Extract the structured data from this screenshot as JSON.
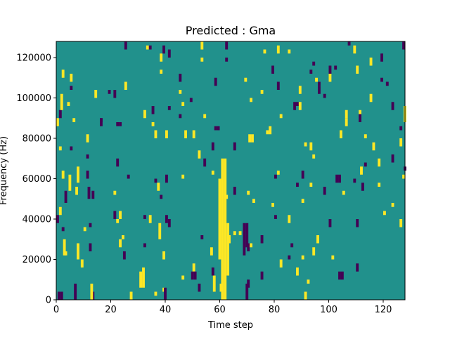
{
  "chart_data": {
    "type": "heatmap",
    "title": "Predicted : Gma",
    "xlabel": "Time step",
    "ylabel": "Frequency (Hz)",
    "xlim": [
      0,
      128
    ],
    "ylim": [
      0,
      128000
    ],
    "x_ticks": [
      0,
      20,
      40,
      60,
      80,
      100,
      120
    ],
    "y_ticks": [
      0,
      20000,
      40000,
      60000,
      80000,
      100000,
      120000
    ],
    "grid": false,
    "legend": "none",
    "colormap": {
      "low": "#440154",
      "mid": "#21918c",
      "high": "#fde725"
    },
    "background_value": "mid",
    "time_bins": 128,
    "freq_bins": 64,
    "high_cells": [
      {
        "t": 61,
        "f0": 0,
        "f1": 70000
      },
      {
        "t": 62,
        "f0": 0,
        "f1": 70000
      },
      {
        "t": 60,
        "f0": 20000,
        "f1": 60000
      },
      {
        "t": 63,
        "f0": 12000,
        "f1": 38000
      },
      {
        "t": 58,
        "f0": 4000,
        "f1": 12000
      },
      {
        "t": 57,
        "f0": 22000,
        "f1": 26000
      },
      {
        "t": 5,
        "f0": 54000,
        "f1": 62000
      },
      {
        "t": 8,
        "f0": 58000,
        "f1": 66000
      },
      {
        "t": 3,
        "f0": 22000,
        "f1": 30000
      },
      {
        "t": 13,
        "f0": 0,
        "f1": 8000
      },
      {
        "t": 31,
        "f0": 6000,
        "f1": 14000
      },
      {
        "t": 32,
        "f0": 6000,
        "f1": 16000
      },
      {
        "t": 38,
        "f0": 30000,
        "f1": 38000
      },
      {
        "t": 71,
        "f0": 78000,
        "f1": 82000
      },
      {
        "t": 72,
        "f0": 78000,
        "f1": 82000
      },
      {
        "t": 2,
        "f0": 94000,
        "f1": 102000
      },
      {
        "t": 8,
        "f0": 20000,
        "f1": 28000
      },
      {
        "t": 96,
        "f0": 28000,
        "f1": 32000
      },
      {
        "t": 112,
        "f0": 62000,
        "f1": 66000
      },
      {
        "t": 128,
        "f0": 88000,
        "f1": 96000
      }
    ],
    "low_cells": [
      {
        "t": 69,
        "f0": 22000,
        "f1": 38000
      },
      {
        "t": 70,
        "f0": 26000,
        "f1": 38000
      },
      {
        "t": 1,
        "f0": 0,
        "f1": 4000
      },
      {
        "t": 2,
        "f0": 0,
        "f1": 4000
      },
      {
        "t": 7,
        "f0": 0,
        "f1": 8000
      },
      {
        "t": 12,
        "f0": 50000,
        "f1": 56000
      },
      {
        "t": 25,
        "f0": 20000,
        "f1": 24000
      },
      {
        "t": 50,
        "f0": 10000,
        "f1": 14000
      },
      {
        "t": 51,
        "f0": 10000,
        "f1": 14000
      },
      {
        "t": 104,
        "f0": 10000,
        "f1": 14000
      },
      {
        "t": 105,
        "f0": 10000,
        "f1": 14000
      },
      {
        "t": 70,
        "f0": 0,
        "f1": 8000
      },
      {
        "t": 103,
        "f0": 58000,
        "f1": 62000
      },
      {
        "t": 104,
        "f0": 58000,
        "f1": 62000
      },
      {
        "t": 40,
        "f0": 0,
        "f1": 6000
      },
      {
        "t": 128,
        "f0": 64000,
        "f1": 66000
      }
    ]
  }
}
